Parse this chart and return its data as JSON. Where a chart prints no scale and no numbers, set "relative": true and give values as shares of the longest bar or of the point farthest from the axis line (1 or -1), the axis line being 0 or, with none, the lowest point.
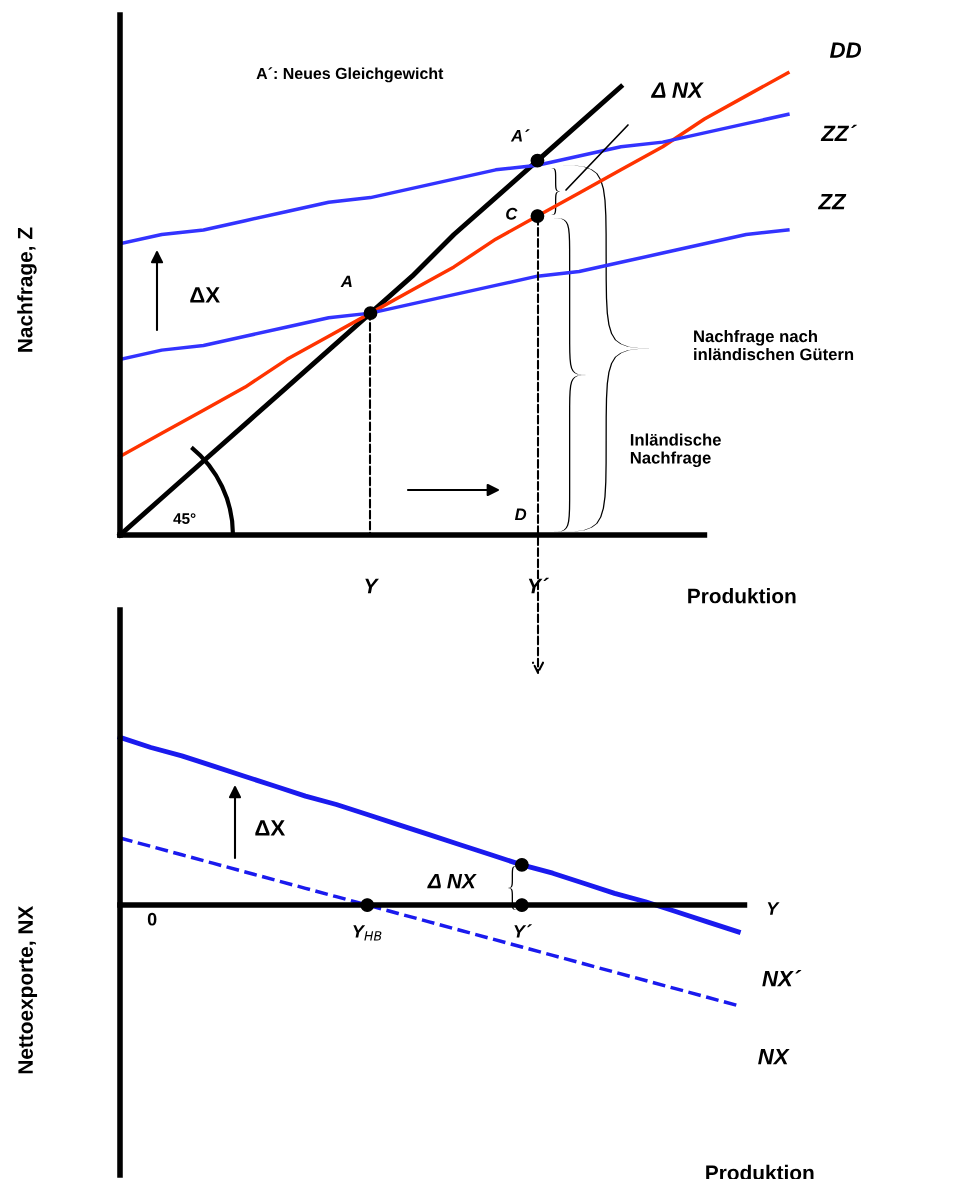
{
  "chart_data": [
    {
      "type": "line",
      "relative": true,
      "categories": [
        null,
        null,
        null,
        null,
        null,
        null,
        "Y",
        null,
        null,
        null,
        "Y´",
        null,
        null,
        null,
        null,
        null,
        null
      ],
      "xlabel": "Produktion",
      "ylabel": "Nachfrage, Z",
      "series": [
        {
          "color": "#000000",
          "values": [
            0,
            0.08,
            0.16,
            0.24,
            0.32,
            0.4,
            0.48,
            0.56,
            0.65,
            0.73,
            0.81,
            0.89,
            0.97,
            null,
            null,
            null,
            null
          ]
        },
        {
          "name": "DD",
          "color": "#ff3300",
          "values": [
            0.17,
            0.22,
            0.27,
            0.32,
            0.38,
            0.43,
            0.48,
            0.53,
            0.58,
            0.64,
            0.69,
            0.74,
            0.79,
            0.84,
            0.9,
            0.95,
            1
          ]
        },
        {
          "name": "ZZ´",
          "color": "#3333ff",
          "values": [
            0.63,
            0.65,
            0.66,
            0.68,
            0.7,
            0.72,
            0.73,
            0.75,
            0.77,
            0.79,
            0.8,
            0.82,
            0.84,
            0.85,
            0.87,
            0.89,
            0.91
          ]
        },
        {
          "name": "ZZ",
          "color": "#3333ff",
          "values": [
            0.38,
            0.4,
            0.41,
            0.43,
            0.45,
            0.47,
            0.48,
            0.5,
            0.52,
            0.54,
            0.56,
            0.57,
            0.59,
            0.61,
            0.63,
            0.65,
            0.66
          ]
        },
        {
          "type": "scatter",
          "marker": "circle",
          "color": "#000000",
          "values": [
            null,
            null,
            null,
            null,
            null,
            null,
            0.48,
            null,
            null,
            null,
            0.81,
            null,
            null,
            null,
            null,
            null,
            null
          ]
        },
        {
          "type": "scatter",
          "marker": "circle",
          "color": "#000000",
          "values": [
            null,
            null,
            null,
            null,
            null,
            null,
            null,
            null,
            null,
            null,
            0.69,
            null,
            null,
            null,
            null,
            null,
            null
          ]
        }
      ],
      "annotations": [
        "A´: Neues Gleichgewicht",
        "A",
        "A´",
        "C",
        "D",
        "Δ NX",
        "ΔX",
        "Nachfrage nach\ninländischen Gütern",
        "Inländische\nNachfrage",
        "45°"
      ]
    },
    {
      "type": "line",
      "relative": true,
      "categories": [
        null,
        null,
        null,
        null,
        null,
        null,
        null,
        null,
        "Y$_{HB}$",
        null,
        null,
        null,
        null,
        "Y´",
        null,
        null,
        null,
        null,
        null,
        null,
        null
      ],
      "xlabel": "Produktion",
      "ylabel": "Nettoexporte, NX",
      "series": [
        {
          "name": "NX´",
          "color": "#1a1aee",
          "values": [
            1,
            0.94,
            0.89,
            0.83,
            0.77,
            0.71,
            0.65,
            0.6,
            0.54,
            0.48,
            0.42,
            0.36,
            0.3,
            0.24,
            0.19,
            0.13,
            0.07,
            0.02,
            -0.04,
            -0.1,
            -0.16
          ]
        },
        {
          "name": "NX",
          "color": "#1a1aee",
          "line_style": "dashed",
          "values": [
            0.4,
            0.35,
            0.3,
            0.25,
            0.2,
            0.15,
            0.1,
            0.05,
            0,
            -0.05,
            -0.1,
            -0.15,
            -0.2,
            -0.25,
            -0.3,
            -0.35,
            -0.4,
            -0.45,
            -0.5,
            -0.55,
            -0.6
          ]
        },
        {
          "type": "scatter",
          "marker": "circle",
          "color": "#000000",
          "values": [
            null,
            null,
            null,
            null,
            null,
            null,
            null,
            null,
            0,
            null,
            null,
            null,
            null,
            0.24,
            null,
            null,
            null,
            null,
            null,
            null,
            null
          ]
        },
        {
          "type": "scatter",
          "marker": "circle",
          "color": "#000000",
          "values": [
            null,
            null,
            null,
            null,
            null,
            null,
            null,
            null,
            null,
            null,
            null,
            null,
            null,
            0,
            null,
            null,
            null,
            null,
            null,
            null,
            null
          ]
        }
      ],
      "annotations": [
        "0",
        "Y",
        "Δ NX",
        "ΔX"
      ]
    }
  ]
}
